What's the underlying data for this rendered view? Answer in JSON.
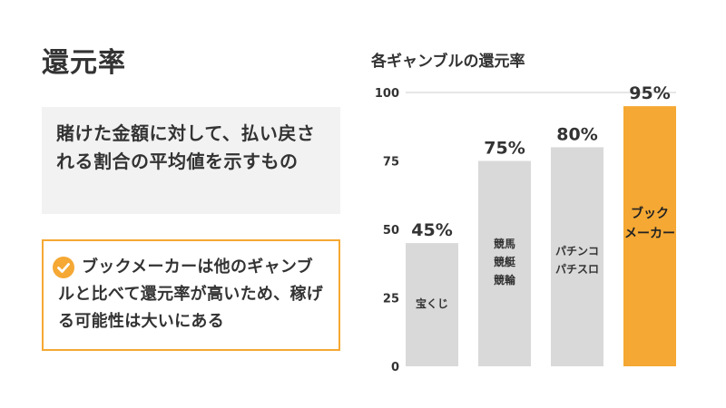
{
  "title": "還元率",
  "definition": "賭けた金額に対して、払い戻される割合の平均値を示すもの",
  "note": "ブックメーカーは他のギャンブルと比べて還元率が高いため、稼げる可能性は大いにある",
  "chart_data": {
    "type": "bar",
    "title": "各ギャンブルの還元率",
    "categories": [
      [
        "宝くじ"
      ],
      [
        "競馬",
        "競艇",
        "競輪"
      ],
      [
        "パチンコ",
        "パチスロ"
      ],
      [
        "ブック",
        "メーカー"
      ]
    ],
    "values": [
      45,
      75,
      80,
      95
    ],
    "value_labels": [
      "45%",
      "75%",
      "80%",
      "95%"
    ],
    "highlight_index": 3,
    "yticks": [
      0,
      25,
      50,
      75,
      100
    ],
    "ylim": [
      0,
      100
    ],
    "grid": false,
    "colors": {
      "bar": "#d9d9d9",
      "highlight": "#f5a833"
    }
  }
}
